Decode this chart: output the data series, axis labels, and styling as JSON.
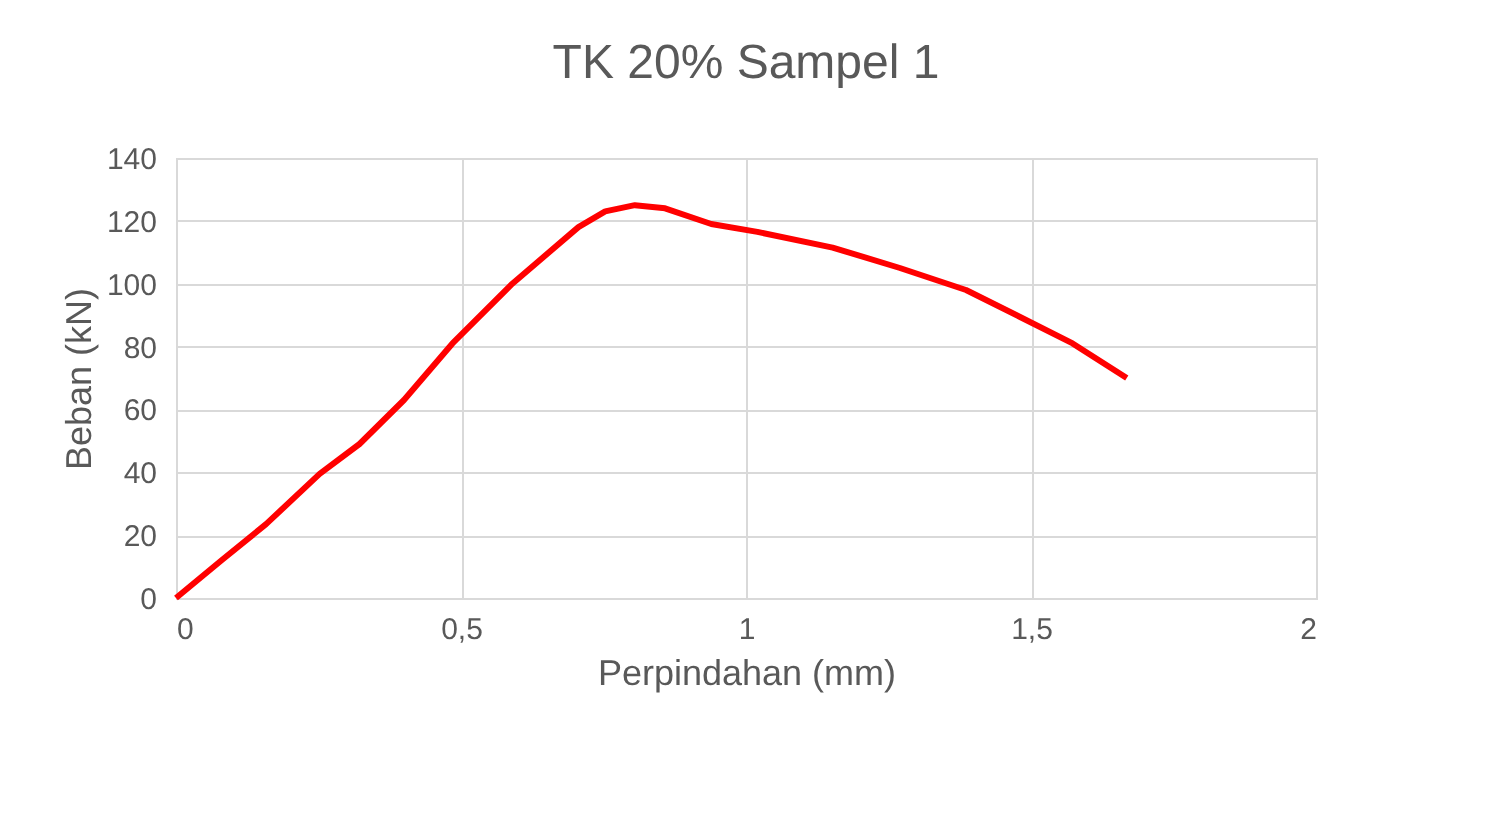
{
  "chart_data": {
    "type": "line",
    "title": "TK 20% Sampel 1",
    "xlabel": "Perpindahan (mm)",
    "ylabel": "Beban (kN)",
    "x": [
      0,
      0.08,
      0.158,
      0.252,
      0.322,
      0.4,
      0.485,
      0.59,
      0.706,
      0.753,
      0.805,
      0.858,
      0.939,
      1.02,
      1.152,
      1.27,
      1.386,
      1.48,
      1.573,
      1.668
    ],
    "series": [
      {
        "color": "#ff0000",
        "values": [
          0,
          12,
          23.5,
          39.5,
          49,
          63,
          81,
          100,
          118,
          123,
          125,
          124,
          119,
          116.5,
          111.5,
          105,
          98,
          89.5,
          81,
          70
        ]
      }
    ],
    "xlim": [
      0,
      2
    ],
    "xticks": [
      0,
      {
        "value": 0.5,
        "label": "0,5"
      },
      1,
      {
        "value": 1.5,
        "label": "1,5"
      },
      2
    ],
    "ylim": [
      0,
      140
    ],
    "yticks": [
      0,
      20,
      40,
      60,
      80,
      100,
      120,
      140
    ],
    "grid": true,
    "marker": "none",
    "line_style": "solid",
    "legend": false
  }
}
